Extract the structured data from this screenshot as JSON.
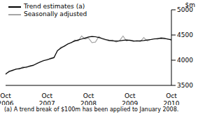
{
  "chart_data": {
    "type": "line",
    "y_label": "$m",
    "annotation": "(a) A trend break of $100m has been applied to January 2008.",
    "legend": "upper left",
    "grid": false,
    "categories": [
      "Oct 2006",
      null,
      null,
      null,
      null,
      null,
      null,
      null,
      null,
      null,
      null,
      null,
      "Oct 2007",
      null,
      null,
      null,
      null,
      null,
      null,
      null,
      null,
      null,
      null,
      null,
      "Oct 2008",
      null,
      null,
      null,
      null,
      null,
      null,
      null,
      null,
      null,
      null,
      null,
      "Oct 2009",
      null,
      null,
      null,
      null,
      null,
      null,
      null,
      null,
      null,
      null,
      null,
      "Oct 2010"
    ],
    "ylim": [
      3500,
      5000
    ],
    "yticks": [
      3500,
      4000,
      4500,
      5000
    ],
    "series": [
      {
        "name": "Trend estimates (a)",
        "color": "#000000",
        "values": [
          3730,
          3770,
          3800,
          3820,
          3835,
          3850,
          3865,
          3880,
          3900,
          3930,
          3965,
          3990,
          4010,
          4030,
          4050,
          4190,
          4240,
          4280,
          4320,
          4350,
          4380,
          4400,
          4420,
          4440,
          4460,
          4470,
          4465,
          4450,
          4430,
          4410,
          4395,
          4385,
          4380,
          4385,
          4395,
          4400,
          4395,
          4385,
          4380,
          4385,
          4390,
          4400,
          4410,
          4420,
          4430,
          4435,
          4430,
          4420,
          4400
        ]
      },
      {
        "name": "Seasonally adjusted",
        "color": "#a6a6a6",
        "values": [
          3710,
          3790,
          3790,
          3830,
          3820,
          3870,
          3850,
          3890,
          3890,
          3940,
          3960,
          4000,
          4000,
          4040,
          4060,
          4180,
          4260,
          4270,
          4330,
          4340,
          4400,
          4380,
          4480,
          4420,
          4440,
          4350,
          4360,
          4470,
          4420,
          4400,
          4380,
          4400,
          4360,
          4390,
          4480,
          4380,
          4400,
          4370,
          4390,
          4370,
          4450,
          4380,
          4410,
          4430,
          4420,
          4450,
          4440,
          4410,
          4420
        ]
      }
    ]
  }
}
